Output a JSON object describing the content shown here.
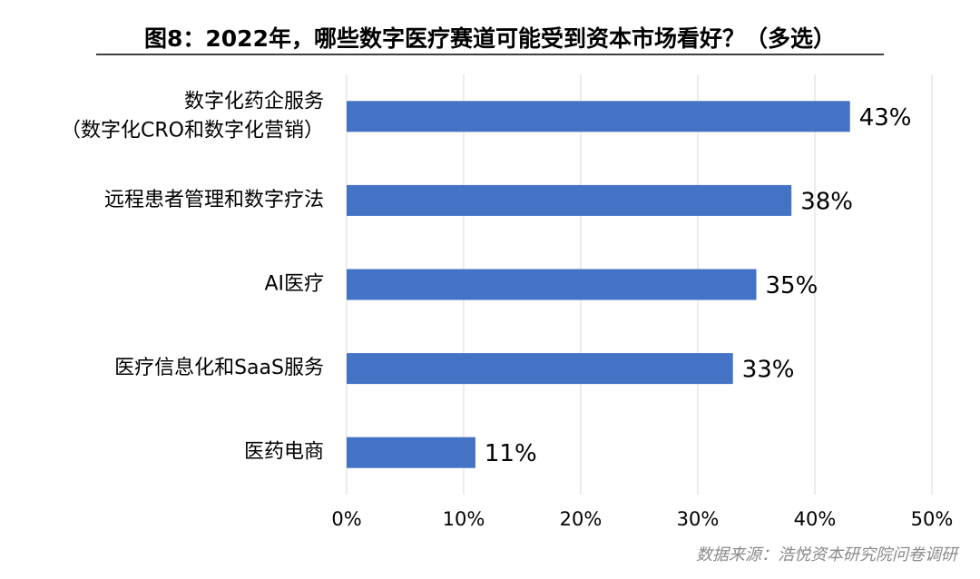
{
  "chart_data": {
    "type": "bar",
    "orientation": "horizontal",
    "title": "图8：2022年，哪些数字医疗赛道可能受到资本市场看好？（多选）",
    "categories": [
      "数字化药企服务\n（数字化CRO和数字化营销）",
      "远程患者管理和数字疗法",
      "AI医疗",
      "医疗信息化和SaaS服务",
      "医药电商"
    ],
    "values": [
      43,
      38,
      35,
      33,
      11
    ],
    "value_labels": [
      "43%",
      "38%",
      "35%",
      "33%",
      "11%"
    ],
    "color": "#4472c4",
    "xlim": [
      0,
      50
    ],
    "xticks": [
      {
        "value": 0,
        "label": "0%"
      },
      {
        "value": 10,
        "label": "10%"
      },
      {
        "value": 20,
        "label": "20%"
      },
      {
        "value": 30,
        "label": "30%"
      },
      {
        "value": 40,
        "label": "40%"
      },
      {
        "value": 50,
        "label": "50%"
      }
    ],
    "grid": true,
    "source": "数据来源：浩悦资本研究院问卷调研"
  }
}
